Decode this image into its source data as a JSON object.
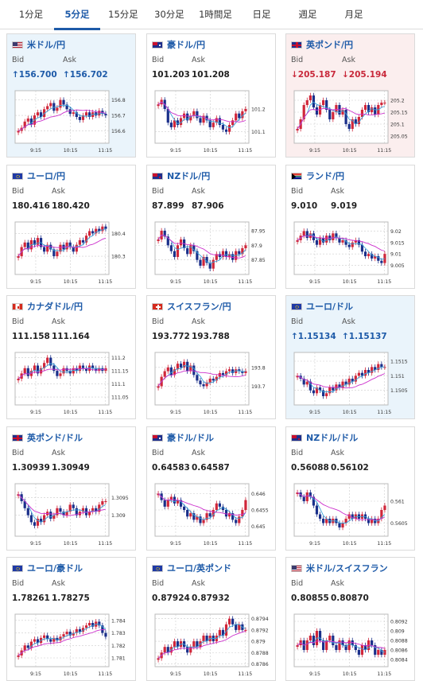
{
  "tabs": [
    {
      "label": "1分足",
      "active": false
    },
    {
      "label": "5分足",
      "active": true
    },
    {
      "label": "15分足",
      "active": false
    },
    {
      "label": "30分足",
      "active": false
    },
    {
      "label": "1時間足",
      "active": false
    },
    {
      "label": "日足",
      "active": false
    },
    {
      "label": "週足",
      "active": false
    },
    {
      "label": "月足",
      "active": false
    }
  ],
  "labels": {
    "bid": "Bid",
    "ask": "Ask"
  },
  "colors": {
    "accent": "#1d5aa8",
    "up": "#1d5aa8",
    "down": "#c8283a",
    "candle_up": "#d0263a",
    "candle_down": "#1a2f8a",
    "ma_short": "#3aa0d8",
    "ma_long": "#cc2fcc"
  },
  "cards": [
    {
      "name": "usd-jpy",
      "pair": "米ドル/円",
      "flag": "us-flag-icon",
      "bid": "↑156.700",
      "ask": "↑156.702",
      "trend": "up",
      "chart_data": {
        "type": "candlestick",
        "xticks": [
          "9:15",
          "10:15",
          "11:15"
        ],
        "yticks": [
          "156.8",
          "156.7",
          "156.6"
        ],
        "ylim": [
          156.52,
          156.86
        ],
        "close": [
          156.6,
          156.62,
          156.66,
          156.68,
          156.64,
          156.7,
          156.72,
          156.69,
          156.74,
          156.76,
          156.78,
          156.73,
          156.75,
          156.8,
          156.77,
          156.74,
          156.71,
          156.72,
          156.69,
          156.67,
          156.7,
          156.72,
          156.69,
          156.72,
          156.7,
          156.73,
          156.71,
          156.7
        ]
      }
    },
    {
      "name": "aud-jpy",
      "pair": "豪ドル/円",
      "flag": "au-flag-icon",
      "bid": "101.203",
      "ask": "101.208",
      "trend": "none",
      "chart_data": {
        "type": "candlestick",
        "xticks": [
          "9:15",
          "10:15",
          "11:15"
        ],
        "yticks": [
          "101.2",
          "101.1"
        ],
        "ylim": [
          101.05,
          101.28
        ],
        "close": [
          101.22,
          101.24,
          101.2,
          101.14,
          101.12,
          101.15,
          101.13,
          101.16,
          101.18,
          101.15,
          101.17,
          101.19,
          101.16,
          101.14,
          101.17,
          101.15,
          101.12,
          101.14,
          101.16,
          101.13,
          101.11,
          101.1,
          101.13,
          101.15,
          101.18,
          101.16,
          101.19,
          101.2
        ]
      }
    },
    {
      "name": "gbp-jpy",
      "pair": "英ポンド/円",
      "flag": "uk-flag-icon",
      "bid": "↓205.187",
      "ask": "↓205.194",
      "trend": "down",
      "chart_data": {
        "type": "candlestick",
        "xticks": [
          "9:15",
          "10:15",
          "11:15"
        ],
        "yticks": [
          "205.2",
          "205.15",
          "205.1",
          "205.05"
        ],
        "ylim": [
          205.02,
          205.24
        ],
        "close": [
          205.08,
          205.12,
          205.18,
          205.2,
          205.22,
          205.17,
          205.14,
          205.18,
          205.2,
          205.16,
          205.12,
          205.15,
          205.18,
          205.14,
          205.16,
          205.1,
          205.08,
          205.12,
          205.1,
          205.13,
          205.16,
          205.18,
          205.15,
          205.17,
          205.14,
          205.18,
          205.19,
          205.19
        ]
      }
    },
    {
      "name": "eur-jpy",
      "pair": "ユーロ/円",
      "flag": "eu-flag-icon",
      "bid": "180.416",
      "ask": "180.420",
      "trend": "none",
      "chart_data": {
        "type": "candlestick",
        "xticks": [
          "9:15",
          "10:15",
          "11:15"
        ],
        "yticks": [
          "180.4",
          "180.3"
        ],
        "ylim": [
          180.22,
          180.45
        ],
        "close": [
          180.3,
          180.34,
          180.36,
          180.33,
          180.37,
          180.35,
          180.38,
          180.34,
          180.32,
          180.35,
          180.33,
          180.3,
          180.32,
          180.35,
          180.33,
          180.36,
          180.34,
          180.32,
          180.35,
          180.37,
          180.36,
          180.39,
          180.41,
          180.4,
          180.42,
          180.41,
          180.43,
          180.42
        ]
      }
    },
    {
      "name": "nzd-jpy",
      "pair": "NZドル/円",
      "flag": "nz-flag-icon",
      "bid": "87.899",
      "ask": "87.906",
      "trend": "none",
      "chart_data": {
        "type": "candlestick",
        "xticks": [
          "9:15",
          "10:15",
          "11:15"
        ],
        "yticks": [
          "87.95",
          "87.9",
          "87.85"
        ],
        "ylim": [
          87.8,
          87.98
        ],
        "close": [
          87.92,
          87.95,
          87.93,
          87.9,
          87.88,
          87.86,
          87.9,
          87.92,
          87.89,
          87.87,
          87.9,
          87.88,
          87.85,
          87.83,
          87.86,
          87.84,
          87.82,
          87.85,
          87.87,
          87.86,
          87.88,
          87.86,
          87.87,
          87.85,
          87.88,
          87.87,
          87.89,
          87.9
        ]
      }
    },
    {
      "name": "zar-jpy",
      "pair": "ランド/円",
      "flag": "za-flag-icon",
      "bid": "9.010",
      "ask": "9.019",
      "trend": "none",
      "chart_data": {
        "type": "candlestick",
        "xticks": [
          "9:15",
          "10:15",
          "11:15"
        ],
        "yticks": [
          "9.02",
          "9.015",
          "9.01",
          "9.005"
        ],
        "ylim": [
          9.001,
          9.024
        ],
        "close": [
          9.016,
          9.018,
          9.02,
          9.017,
          9.019,
          9.016,
          9.014,
          9.017,
          9.015,
          9.018,
          9.016,
          9.019,
          9.017,
          9.015,
          9.016,
          9.014,
          9.013,
          9.015,
          9.016,
          9.014,
          9.011,
          9.009,
          9.01,
          9.008,
          9.009,
          9.007,
          9.006,
          9.01
        ]
      }
    },
    {
      "name": "cad-jpy",
      "pair": "カナダドル/円",
      "flag": "ca-flag-icon",
      "bid": "111.158",
      "ask": "111.164",
      "trend": "none",
      "chart_data": {
        "type": "candlestick",
        "xticks": [
          "9:15",
          "10:15",
          "11:15"
        ],
        "yticks": [
          "111.2",
          "111.15",
          "111.1",
          "111.05"
        ],
        "ylim": [
          111.02,
          111.22
        ],
        "close": [
          111.12,
          111.14,
          111.16,
          111.13,
          111.15,
          111.17,
          111.14,
          111.16,
          111.18,
          111.2,
          111.17,
          111.15,
          111.13,
          111.14,
          111.16,
          111.15,
          111.14,
          111.16,
          111.15,
          111.17,
          111.16,
          111.15,
          111.17,
          111.16,
          111.15,
          111.16,
          111.15,
          111.16
        ]
      }
    },
    {
      "name": "chf-jpy",
      "pair": "スイスフラン/円",
      "flag": "ch-flag-icon",
      "bid": "193.772",
      "ask": "193.788",
      "trend": "none",
      "chart_data": {
        "type": "candlestick",
        "xticks": [
          "9:15",
          "10:15",
          "11:15"
        ],
        "yticks": [
          "193.8",
          "193.7"
        ],
        "ylim": [
          193.6,
          193.88
        ],
        "close": [
          193.7,
          193.75,
          193.78,
          193.8,
          193.76,
          193.79,
          193.82,
          193.8,
          193.83,
          193.78,
          193.81,
          193.76,
          193.73,
          193.71,
          193.7,
          193.72,
          193.74,
          193.73,
          193.75,
          193.77,
          193.76,
          193.78,
          193.79,
          193.77,
          193.79,
          193.78,
          193.77,
          193.78
        ]
      }
    },
    {
      "name": "eur-usd",
      "pair": "ユーロ/ドル",
      "flag": "eu-flag-icon",
      "bid": "↑1.15134",
      "ask": "↑1.15137",
      "trend": "up",
      "chart_data": {
        "type": "candlestick",
        "xticks": [
          "9:15",
          "10:15",
          "11:15"
        ],
        "yticks": [
          "1.1515",
          "1.151",
          "1.1505"
        ],
        "ylim": [
          1.15,
          1.1518
        ],
        "close": [
          1.151,
          1.1509,
          1.1507,
          1.1508,
          1.1505,
          1.1504,
          1.1506,
          1.1505,
          1.1503,
          1.1504,
          1.1506,
          1.1505,
          1.1507,
          1.1506,
          1.1508,
          1.1507,
          1.1509,
          1.1508,
          1.151,
          1.1511,
          1.151,
          1.1512,
          1.1511,
          1.1513,
          1.1512,
          1.1514,
          1.1513,
          1.1513
        ]
      }
    },
    {
      "name": "gbp-usd",
      "pair": "英ポンド/ドル",
      "flag": "uk-flag-icon",
      "bid": "1.30939",
      "ask": "1.30949",
      "trend": "none",
      "chart_data": {
        "type": "candlestick",
        "xticks": [
          "9:15",
          "10:15",
          "11:15"
        ],
        "yticks": [
          "1.3095",
          "1.309"
        ],
        "ylim": [
          1.3084,
          1.3099
        ],
        "close": [
          1.3096,
          1.3094,
          1.3092,
          1.309,
          1.3088,
          1.3087,
          1.3089,
          1.3088,
          1.309,
          1.3091,
          1.3089,
          1.309,
          1.3092,
          1.3091,
          1.309,
          1.3091,
          1.3093,
          1.3092,
          1.309,
          1.3091,
          1.3092,
          1.309,
          1.3091,
          1.3092,
          1.3091,
          1.3093,
          1.3094,
          1.3094
        ]
      }
    },
    {
      "name": "aud-usd",
      "pair": "豪ドル/ドル",
      "flag": "au-flag-icon",
      "bid": "0.64583",
      "ask": "0.64587",
      "trend": "none",
      "chart_data": {
        "type": "candlestick",
        "xticks": [
          "9:15",
          "10:15",
          "11:15"
        ],
        "yticks": [
          "0.646",
          "0.6455",
          "0.645"
        ],
        "ylim": [
          0.6447,
          0.6463
        ],
        "close": [
          0.646,
          0.6458,
          0.6456,
          0.6458,
          0.6459,
          0.6457,
          0.6458,
          0.6456,
          0.6455,
          0.6453,
          0.6454,
          0.6452,
          0.6453,
          0.6451,
          0.6452,
          0.6454,
          0.6453,
          0.6455,
          0.6457,
          0.6456,
          0.6455,
          0.6453,
          0.6454,
          0.6452,
          0.6451,
          0.6453,
          0.6455,
          0.6458
        ]
      }
    },
    {
      "name": "nzd-usd",
      "pair": "NZドル/ドル",
      "flag": "nz-flag-icon",
      "bid": "0.56088",
      "ask": "0.56102",
      "trend": "none",
      "chart_data": {
        "type": "candlestick",
        "xticks": [
          "9:15",
          "10:15",
          "11:15"
        ],
        "yticks": [
          "0.561",
          "0.5605"
        ],
        "ylim": [
          0.5602,
          0.5614
        ],
        "close": [
          0.5612,
          0.5611,
          0.561,
          0.5612,
          0.5611,
          0.5609,
          0.5607,
          0.5606,
          0.5605,
          0.5606,
          0.5605,
          0.5606,
          0.5605,
          0.5604,
          0.5605,
          0.5606,
          0.5607,
          0.5606,
          0.5607,
          0.5606,
          0.5607,
          0.5606,
          0.5605,
          0.5606,
          0.5605,
          0.5606,
          0.5608,
          0.5609
        ]
      }
    },
    {
      "name": "eur-aud",
      "pair": "ユーロ/豪ドル",
      "flag": "eu-flag-icon",
      "bid": "1.78261",
      "ask": "1.78275",
      "trend": "none",
      "chart_data": {
        "type": "candlestick",
        "xticks": [
          "9:15",
          "10:15",
          "11:15"
        ],
        "yticks": [
          "1.784",
          "1.783",
          "1.782",
          "1.781"
        ],
        "ylim": [
          1.7803,
          1.7845
        ],
        "close": [
          1.7812,
          1.7816,
          1.782,
          1.7818,
          1.7823,
          1.7825,
          1.7822,
          1.7826,
          1.7828,
          1.7825,
          1.7823,
          1.7826,
          1.7824,
          1.7827,
          1.7829,
          1.7831,
          1.7828,
          1.783,
          1.7833,
          1.7831,
          1.7834,
          1.7836,
          1.7838,
          1.7835,
          1.7839,
          1.7836,
          1.783,
          1.7827
        ]
      }
    },
    {
      "name": "eur-gbp",
      "pair": "ユーロ/英ポンド",
      "flag": "eu-flag-icon",
      "bid": "0.87924",
      "ask": "0.87932",
      "trend": "none",
      "chart_data": {
        "type": "candlestick",
        "xticks": [
          "9:15",
          "10:15",
          "11:15"
        ],
        "yticks": [
          "0.8794",
          "0.8792",
          "0.879",
          "0.8788",
          "0.8786"
        ],
        "ylim": [
          0.87855,
          0.87948
        ],
        "close": [
          0.8787,
          0.8788,
          0.8789,
          0.8788,
          0.8789,
          0.879,
          0.8789,
          0.879,
          0.8789,
          0.8788,
          0.8789,
          0.879,
          0.8789,
          0.879,
          0.8791,
          0.879,
          0.8791,
          0.879,
          0.8791,
          0.8792,
          0.8791,
          0.8793,
          0.8794,
          0.8793,
          0.8792,
          0.8793,
          0.8792,
          0.8792
        ]
      }
    },
    {
      "name": "usd-chf",
      "pair": "米ドル/スイスフラン",
      "flag": "us-flag-icon",
      "bid": "0.80855",
      "ask": "0.80870",
      "trend": "none",
      "chart_data": {
        "type": "candlestick",
        "xticks": [
          "9:15",
          "10:15",
          "11:15"
        ],
        "yticks": [
          "0.8092",
          "0.809",
          "0.8088",
          "0.8086",
          "0.8084"
        ],
        "ylim": [
          0.80825,
          0.80935
        ],
        "close": [
          0.8087,
          0.8088,
          0.8086,
          0.8088,
          0.8089,
          0.8087,
          0.809,
          0.8088,
          0.8086,
          0.8088,
          0.8089,
          0.8087,
          0.8086,
          0.8088,
          0.8087,
          0.8086,
          0.8088,
          0.8087,
          0.8086,
          0.8085,
          0.8087,
          0.8086,
          0.8088,
          0.8087,
          0.8085,
          0.8086,
          0.8085,
          0.8086
        ]
      }
    }
  ]
}
